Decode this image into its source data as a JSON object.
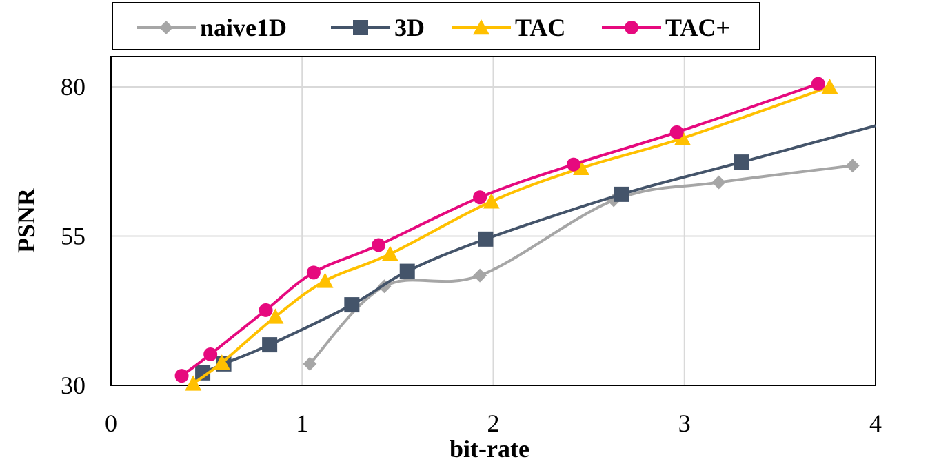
{
  "chart_data": {
    "type": "line",
    "title": "",
    "xlabel": "bit-rate",
    "ylabel": "PSNR",
    "xlim": [
      0,
      4
    ],
    "ylim": [
      30,
      85
    ],
    "xticks": [
      0,
      1,
      2,
      3,
      4
    ],
    "yticks": [
      30,
      55,
      80
    ],
    "grid": true,
    "legend_position": "top",
    "series": [
      {
        "name": "naive1D",
        "color": "#a6a6a6",
        "marker": "diamond",
        "points": [
          [
            1.04,
            33.6
          ],
          [
            1.43,
            46.6
          ],
          [
            1.93,
            48.4
          ],
          [
            2.63,
            61.0
          ],
          [
            3.18,
            64.0
          ],
          [
            3.88,
            66.8
          ]
        ]
      },
      {
        "name": "3D",
        "color": "#44546a",
        "marker": "square",
        "points": [
          [
            0.48,
            32.1
          ],
          [
            0.59,
            33.6
          ],
          [
            0.83,
            36.8
          ],
          [
            1.26,
            43.5
          ],
          [
            1.55,
            49.1
          ],
          [
            1.96,
            54.5
          ],
          [
            2.67,
            62.0
          ],
          [
            3.3,
            67.4
          ],
          [
            4.0,
            73.5
          ]
        ],
        "markers_shown": [
          0,
          1,
          2,
          3,
          4,
          5,
          6,
          7
        ]
      },
      {
        "name": "TAC",
        "color": "#ffc000",
        "marker": "triangle",
        "points": [
          [
            0.43,
            30.3
          ],
          [
            0.58,
            33.8
          ],
          [
            0.86,
            41.5
          ],
          [
            1.12,
            47.5
          ],
          [
            1.46,
            52.0
          ],
          [
            1.99,
            60.8
          ],
          [
            2.46,
            66.4
          ],
          [
            2.99,
            71.4
          ],
          [
            3.76,
            80.0
          ]
        ]
      },
      {
        "name": "TAC+",
        "color": "#e6097e",
        "marker": "circle",
        "points": [
          [
            0.37,
            31.6
          ],
          [
            0.52,
            35.2
          ],
          [
            0.81,
            42.6
          ],
          [
            1.06,
            48.9
          ],
          [
            1.4,
            53.5
          ],
          [
            1.93,
            61.5
          ],
          [
            2.42,
            67.0
          ],
          [
            2.96,
            72.4
          ],
          [
            3.7,
            80.5
          ]
        ]
      }
    ]
  }
}
